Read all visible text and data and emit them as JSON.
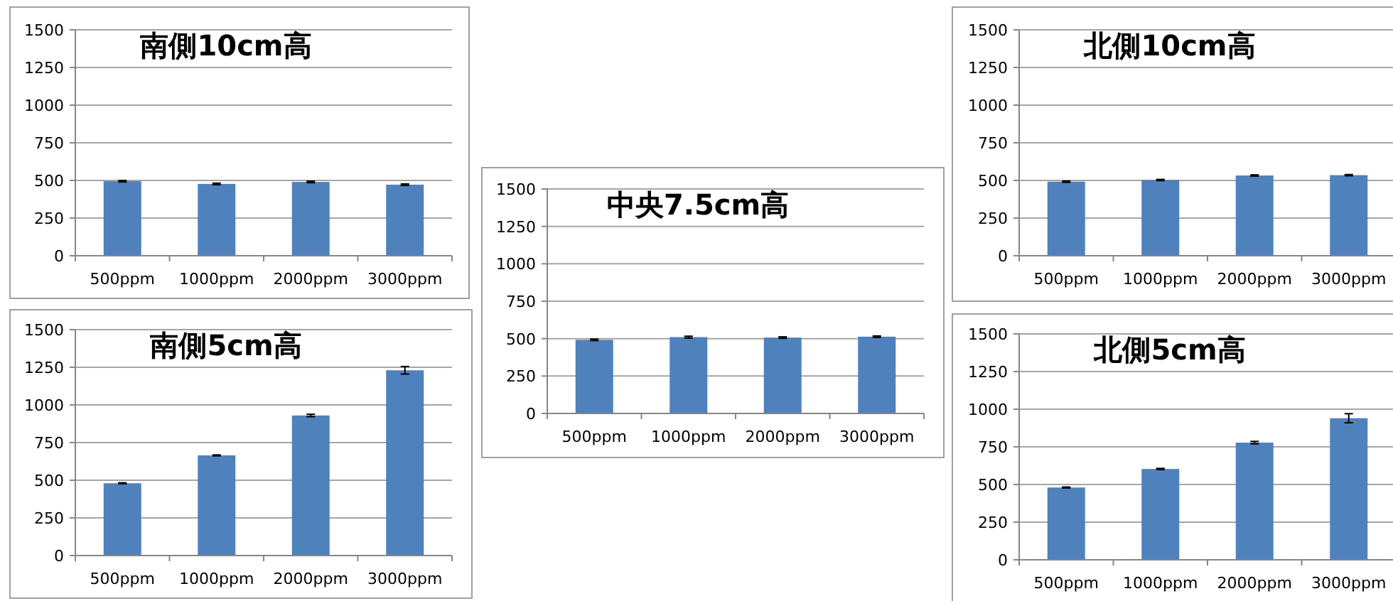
{
  "chart_data": [
    {
      "type": "bar",
      "title": "南側10cm高",
      "categories": [
        "500ppm",
        "1000ppm",
        "2000ppm",
        "3000ppm"
      ],
      "values": [
        495,
        477,
        490,
        472
      ],
      "errors": [
        5,
        5,
        5,
        5
      ],
      "color": "#4f81bd",
      "ylim": [
        0,
        1500
      ],
      "yticks": [
        0,
        250,
        500,
        750,
        1000,
        1250,
        1500
      ],
      "grid": "y"
    },
    {
      "type": "bar",
      "title": "北側10cm高",
      "categories": [
        "500ppm",
        "1000ppm",
        "2000ppm",
        "3000ppm"
      ],
      "values": [
        492,
        503,
        533,
        535
      ],
      "errors": [
        4,
        4,
        4,
        4
      ],
      "color": "#4f81bd",
      "ylim": [
        0,
        1500
      ],
      "yticks": [
        0,
        250,
        500,
        750,
        1000,
        1250,
        1500
      ],
      "grid": "y"
    },
    {
      "type": "bar",
      "title": "中央7.5cm高",
      "categories": [
        "500ppm",
        "1000ppm",
        "2000ppm",
        "3000ppm"
      ],
      "values": [
        492,
        510,
        507,
        513
      ],
      "errors": [
        5,
        6,
        5,
        5
      ],
      "color": "#4f81bd",
      "ylim": [
        0,
        1500
      ],
      "yticks": [
        0,
        250,
        500,
        750,
        1000,
        1250,
        1500
      ],
      "grid": "y"
    },
    {
      "type": "bar",
      "title": "南側5cm高",
      "categories": [
        "500ppm",
        "1000ppm",
        "2000ppm",
        "3000ppm"
      ],
      "values": [
        480,
        665,
        930,
        1230
      ],
      "errors": [
        3,
        3,
        8,
        25
      ],
      "color": "#4f81bd",
      "ylim": [
        0,
        1500
      ],
      "yticks": [
        0,
        250,
        500,
        750,
        1000,
        1250,
        1500
      ],
      "grid": "y"
    },
    {
      "type": "bar",
      "title": "北側5cm高",
      "categories": [
        "500ppm",
        "1000ppm",
        "2000ppm",
        "3000ppm"
      ],
      "values": [
        480,
        603,
        778,
        940
      ],
      "errors": [
        3,
        4,
        8,
        30
      ],
      "color": "#4f81bd",
      "ylim": [
        0,
        1500
      ],
      "yticks": [
        0,
        250,
        500,
        750,
        1000,
        1250,
        1500
      ],
      "grid": "y"
    }
  ]
}
